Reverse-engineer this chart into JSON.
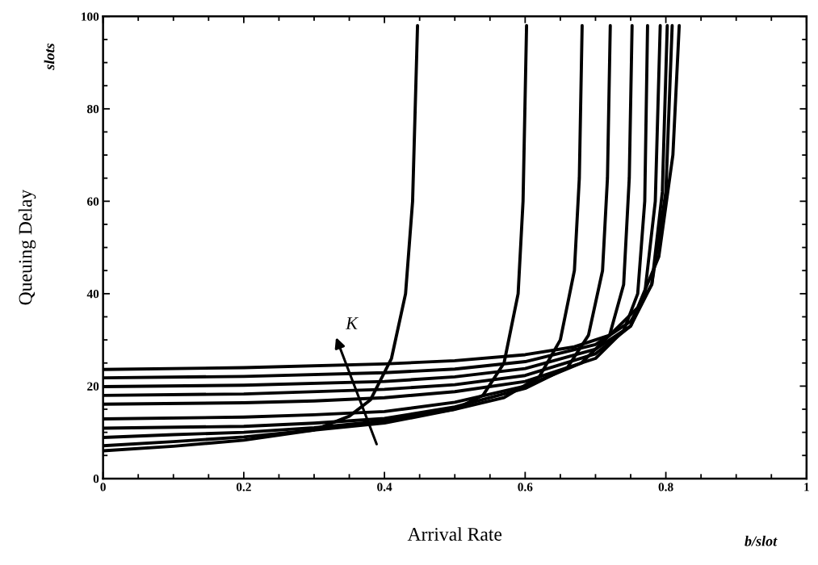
{
  "chart_data": {
    "type": "line",
    "xlabel": "Arrival Rate",
    "ylabel": "Queuing Delay",
    "xlim": [
      0,
      1
    ],
    "ylim": [
      0,
      100
    ],
    "xticks": [
      0,
      0.2,
      0.4,
      0.6,
      0.8,
      1
    ],
    "yticks": [
      0,
      20,
      40,
      60,
      80,
      100
    ],
    "grid": false,
    "legend": false,
    "marker": "none",
    "line_style": "solid",
    "annotations": [
      "K",
      "slots",
      "b/slot"
    ],
    "series": [
      {
        "color": "#000000",
        "x": [
          0,
          0.1,
          0.2,
          0.3,
          0.35,
          0.38,
          0.41,
          0.43,
          0.44,
          0.447
        ],
        "values": [
          6,
          7,
          8.3,
          10.5,
          13.5,
          17,
          26,
          40,
          60,
          98
        ]
      },
      {
        "color": "#000000",
        "x": [
          0,
          0.1,
          0.2,
          0.3,
          0.4,
          0.5,
          0.54,
          0.57,
          0.59,
          0.597,
          0.602
        ],
        "values": [
          7.1,
          8,
          9,
          10.5,
          12,
          15,
          18,
          25,
          40,
          60,
          98
        ]
      },
      {
        "color": "#000000",
        "x": [
          0,
          0.1,
          0.2,
          0.3,
          0.4,
          0.5,
          0.57,
          0.62,
          0.65,
          0.67,
          0.677,
          0.681
        ],
        "values": [
          8.9,
          9.5,
          10,
          11,
          12.5,
          15,
          17.5,
          22,
          30,
          45,
          65,
          98
        ]
      },
      {
        "color": "#000000",
        "x": [
          0,
          0.2,
          0.3,
          0.4,
          0.5,
          0.6,
          0.66,
          0.69,
          0.71,
          0.717,
          0.721
        ],
        "values": [
          10.9,
          11.3,
          12,
          13,
          15.5,
          19.5,
          24,
          31,
          45,
          65,
          98
        ]
      },
      {
        "color": "#000000",
        "x": [
          0,
          0.2,
          0.3,
          0.4,
          0.5,
          0.6,
          0.68,
          0.72,
          0.74,
          0.748,
          0.752
        ],
        "values": [
          12.9,
          13.3,
          13.8,
          14.5,
          16.5,
          20,
          25,
          31,
          42,
          65,
          98
        ]
      },
      {
        "color": "#000000",
        "x": [
          0,
          0.2,
          0.3,
          0.4,
          0.5,
          0.6,
          0.7,
          0.74,
          0.76,
          0.77,
          0.774
        ],
        "values": [
          16.1,
          16.4,
          16.8,
          17.5,
          18.8,
          21,
          26,
          32,
          40,
          60,
          98
        ]
      },
      {
        "color": "#000000",
        "x": [
          0,
          0.2,
          0.4,
          0.5,
          0.6,
          0.7,
          0.75,
          0.77,
          0.785,
          0.792
        ],
        "values": [
          18,
          18.3,
          19.3,
          20.3,
          22.3,
          27,
          33,
          40,
          60,
          98
        ]
      },
      {
        "color": "#000000",
        "x": [
          0,
          0.2,
          0.4,
          0.5,
          0.6,
          0.7,
          0.75,
          0.78,
          0.795,
          0.802
        ],
        "values": [
          19.9,
          20.2,
          21,
          22,
          23.8,
          28,
          33,
          42,
          62,
          98
        ]
      },
      {
        "color": "#000000",
        "x": [
          0,
          0.2,
          0.4,
          0.5,
          0.6,
          0.7,
          0.75,
          0.78,
          0.8,
          0.809
        ],
        "values": [
          21.8,
          22.1,
          22.9,
          23.7,
          25.3,
          29,
          34,
          42,
          62,
          98
        ]
      },
      {
        "color": "#000000",
        "x": [
          0,
          0.2,
          0.4,
          0.5,
          0.6,
          0.67,
          0.72,
          0.76,
          0.79,
          0.81,
          0.819
        ],
        "values": [
          23.6,
          24,
          24.8,
          25.5,
          26.8,
          28.5,
          31,
          37,
          48,
          70,
          98
        ]
      }
    ]
  }
}
